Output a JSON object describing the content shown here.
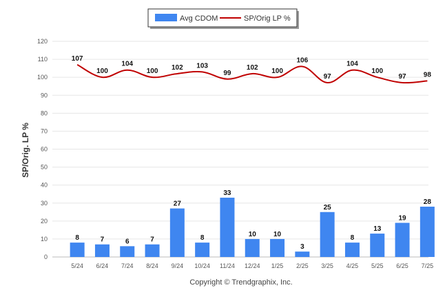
{
  "chart_data": {
    "type": "bar",
    "categories": [
      "5/24",
      "6/24",
      "7/24",
      "8/24",
      "9/24",
      "10/24",
      "11/24",
      "12/24",
      "1/25",
      "2/25",
      "3/25",
      "4/25",
      "5/25",
      "6/25",
      "7/25"
    ],
    "series": [
      {
        "name": "Avg CDOM",
        "type": "bar",
        "color": "#3f86f0",
        "values": [
          8,
          7,
          6,
          7,
          27,
          8,
          33,
          10,
          10,
          3,
          25,
          8,
          13,
          19,
          28
        ]
      },
      {
        "name": "SP/Orig LP %",
        "type": "line",
        "color": "#c00000",
        "values": [
          107,
          100,
          104,
          100,
          102,
          103,
          99,
          102,
          100,
          106,
          97,
          104,
          100,
          97,
          98
        ]
      }
    ],
    "ylabel": "SP/Orig. LP %",
    "ylim": [
      0,
      120
    ],
    "yticks": [
      "0",
      "10",
      "20",
      "30",
      "40",
      "50",
      "60",
      "70",
      "80",
      "90",
      "100",
      "110",
      "120"
    ],
    "grid": true,
    "legend": "top-center",
    "credit": "Copyright © Trendgraphix, Inc."
  }
}
